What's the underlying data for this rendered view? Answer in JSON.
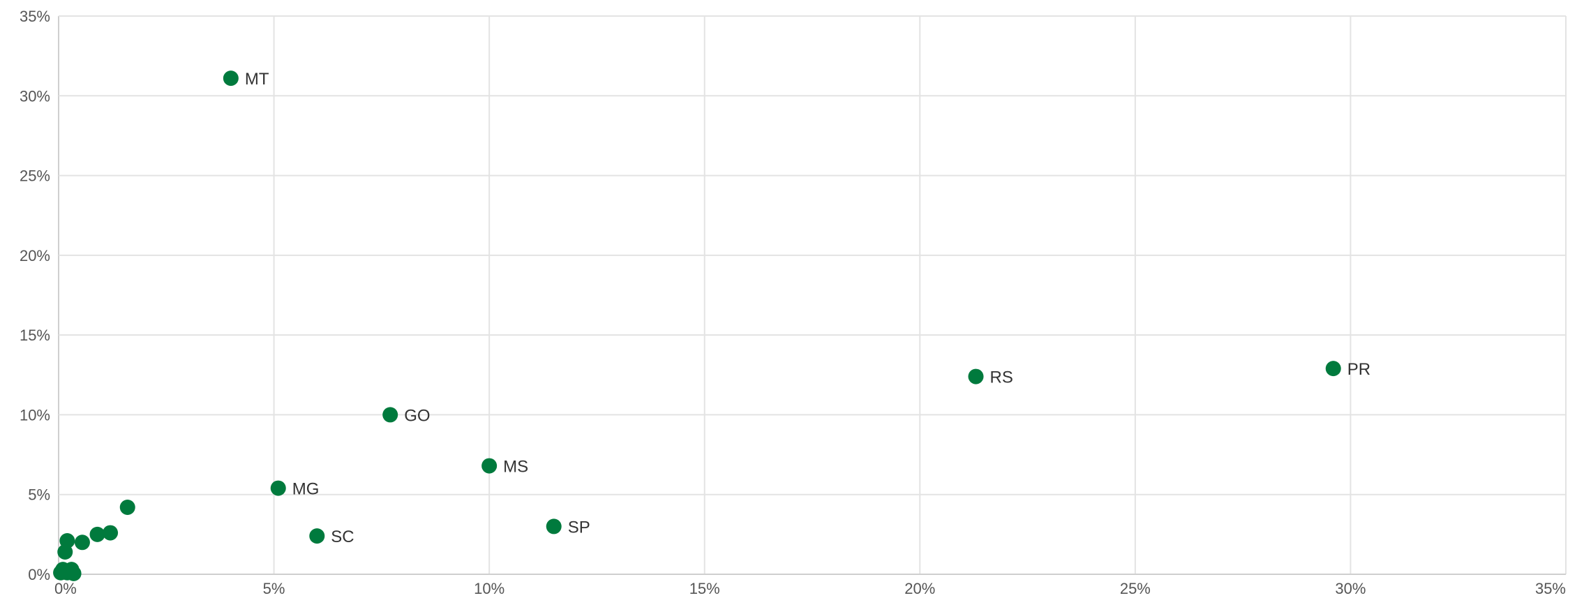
{
  "chart_data": {
    "type": "scatter",
    "title": "",
    "xlabel": "",
    "ylabel": "",
    "xlim": [
      0,
      35
    ],
    "ylim": [
      0,
      35
    ],
    "x_ticks": [
      0,
      5,
      10,
      15,
      20,
      25,
      30,
      35
    ],
    "y_ticks": [
      0,
      5,
      10,
      15,
      20,
      25,
      30,
      35
    ],
    "x_tick_labels": [
      "0%",
      "5%",
      "10%",
      "15%",
      "20%",
      "25%",
      "30%",
      "35%"
    ],
    "y_tick_labels": [
      "0%",
      "5%",
      "10%",
      "15%",
      "20%",
      "25%",
      "30%",
      "35%"
    ],
    "grid": true,
    "point_color": "#007a3d",
    "points": [
      {
        "label": "MT",
        "x": 4.0,
        "y": 31.1
      },
      {
        "label": "PR",
        "x": 29.6,
        "y": 12.9
      },
      {
        "label": "RS",
        "x": 21.3,
        "y": 12.4
      },
      {
        "label": "GO",
        "x": 7.7,
        "y": 10.0
      },
      {
        "label": "MS",
        "x": 10.0,
        "y": 6.8
      },
      {
        "label": "MG",
        "x": 5.1,
        "y": 5.4
      },
      {
        "label": "SP",
        "x": 11.5,
        "y": 3.0
      },
      {
        "label": "SC",
        "x": 6.0,
        "y": 2.4
      },
      {
        "label": "",
        "x": 1.6,
        "y": 4.2
      },
      {
        "label": "",
        "x": 1.2,
        "y": 2.6
      },
      {
        "label": "",
        "x": 0.9,
        "y": 2.5
      },
      {
        "label": "",
        "x": 0.55,
        "y": 2.0
      },
      {
        "label": "",
        "x": 0.2,
        "y": 2.1
      },
      {
        "label": "",
        "x": 0.15,
        "y": 1.4
      },
      {
        "label": "",
        "x": 0.3,
        "y": 0.3
      },
      {
        "label": "",
        "x": 0.1,
        "y": 0.3
      },
      {
        "label": "",
        "x": 0.05,
        "y": 0.1
      },
      {
        "label": "",
        "x": 0.2,
        "y": 0.1
      },
      {
        "label": "",
        "x": 0.35,
        "y": 0.05
      }
    ]
  }
}
